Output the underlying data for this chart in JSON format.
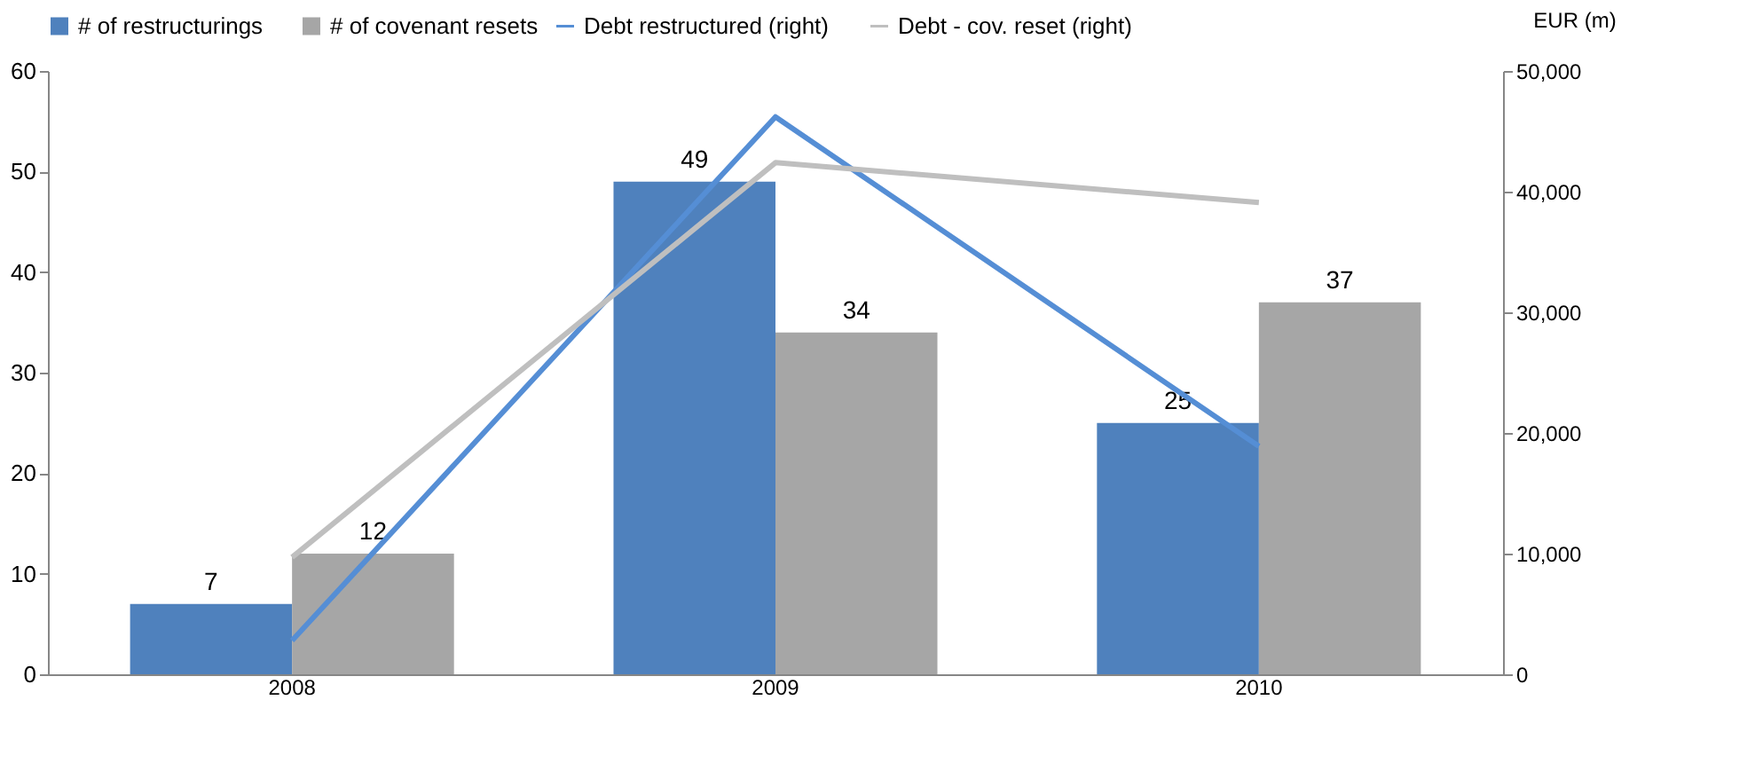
{
  "chart_data": {
    "type": "bar",
    "categories": [
      "2008",
      "2009",
      "2010"
    ],
    "series": [
      {
        "name": "# of restructurings",
        "color": "#4f81bd",
        "values": [
          7,
          49,
          25
        ],
        "value_labels": [
          "7",
          "49",
          "25"
        ]
      },
      {
        "name": "# of covenant resets",
        "color": "#a6a6a6",
        "values": [
          12,
          34,
          37
        ],
        "value_labels": [
          "12",
          "34",
          "37"
        ]
      },
      {
        "name": "Debt restructured (right)",
        "type": "line",
        "axis": "y2",
        "color": "#558ed5",
        "values": [
          2800,
          46200,
          18900
        ]
      },
      {
        "name": "Debt - cov. reset (right)",
        "type": "line",
        "axis": "y2",
        "color": "#bfbfbf",
        "values": [
          9700,
          42400,
          39100
        ]
      }
    ],
    "y2label": "EUR (m)",
    "ylim": [
      0,
      60
    ],
    "yticks": [
      0,
      10,
      20,
      30,
      40,
      50,
      60
    ],
    "y2lim": [
      0,
      50000
    ],
    "y2ticks": [
      {
        "value": 0,
        "label": "0"
      },
      {
        "value": 10000,
        "label": "10,000"
      },
      {
        "value": 20000,
        "label": "20,000"
      },
      {
        "value": 30000,
        "label": "30,000"
      },
      {
        "value": 40000,
        "label": "40,000"
      },
      {
        "value": 50000,
        "label": "50,000"
      }
    ],
    "legend": "top",
    "grid": false
  }
}
